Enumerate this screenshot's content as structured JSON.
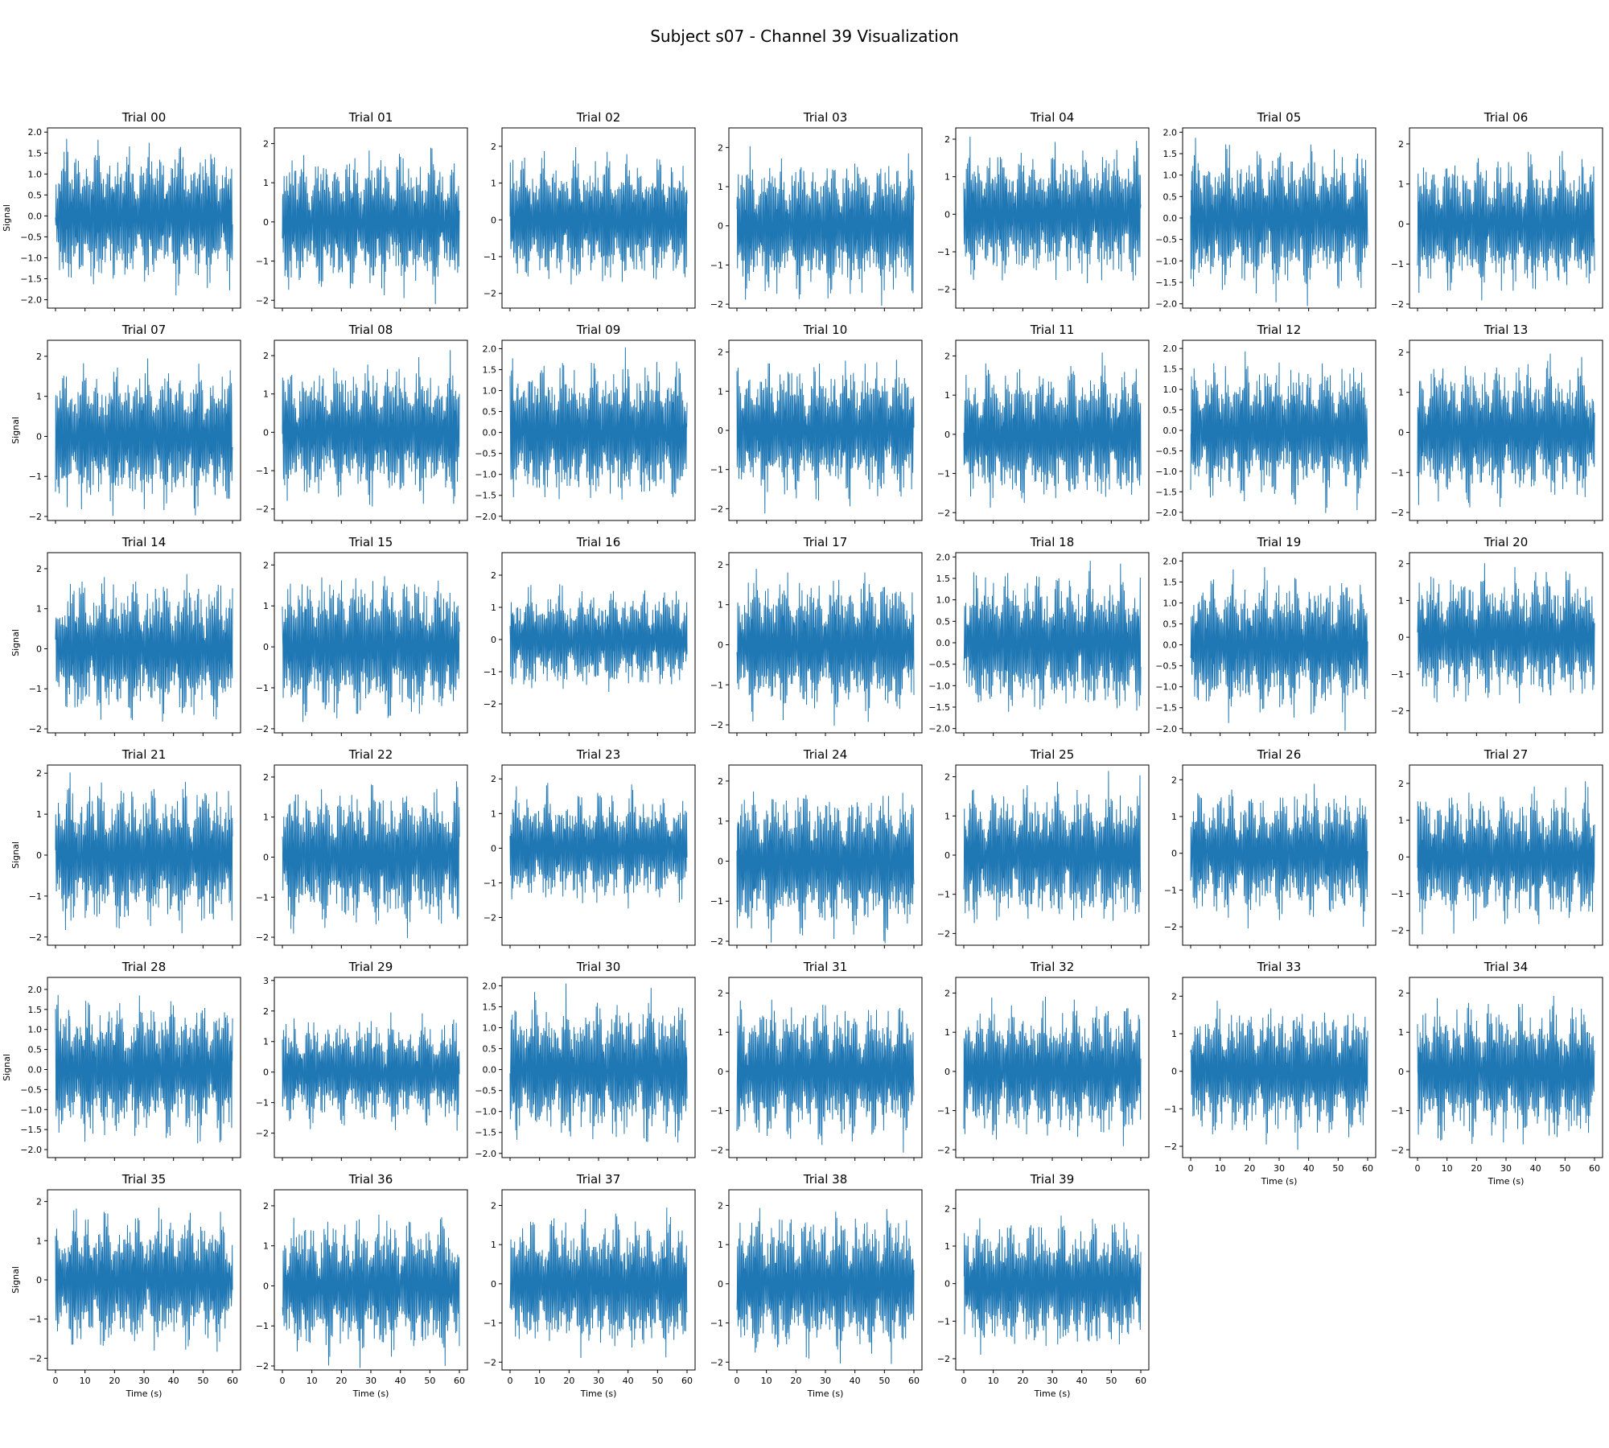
{
  "figure": {
    "title": "Subject s07 - Channel 39 Visualization",
    "line_color": "#1f77b4",
    "xlabel": "Time (s)",
    "ylabel": "Signal",
    "x_ticks": [
      "0",
      "10",
      "20",
      "30",
      "40",
      "50",
      "60"
    ]
  },
  "chart_data": {
    "type": "line",
    "xlim": [
      0,
      60
    ],
    "grid": false,
    "legend": "none",
    "grid_layout": {
      "rows": 6,
      "cols": 7
    },
    "panels": [
      {
        "title": "Trial 00",
        "ylim": [
          -2.2,
          2.1
        ],
        "yticks": [
          "2.0",
          "1.5",
          "1.0",
          "0.5",
          "0.0",
          "−0.5",
          "−1.0",
          "−1.5",
          "−2.0"
        ],
        "show_ylabel": true,
        "show_xlabels": false,
        "amp": 1.9,
        "seed": 11
      },
      {
        "title": "Trial 01",
        "ylim": [
          -2.2,
          2.4
        ],
        "yticks": [
          "2",
          "1",
          "0",
          "−1",
          "−2"
        ],
        "show_ylabel": false,
        "show_xlabels": false,
        "amp": 2.0,
        "seed": 12
      },
      {
        "title": "Trial 02",
        "ylim": [
          -2.4,
          2.5
        ],
        "yticks": [
          "2",
          "1",
          "0",
          "−1",
          "−2"
        ],
        "show_ylabel": false,
        "show_xlabels": false,
        "amp": 2.0,
        "seed": 13
      },
      {
        "title": "Trial 03",
        "ylim": [
          -2.1,
          2.5
        ],
        "yticks": [
          "2",
          "1",
          "0",
          "−1",
          "−2"
        ],
        "show_ylabel": false,
        "show_xlabels": false,
        "amp": 2.0,
        "seed": 14
      },
      {
        "title": "Trial 04",
        "ylim": [
          -2.5,
          2.3
        ],
        "yticks": [
          "2",
          "1",
          "0",
          "−1",
          "−2"
        ],
        "show_ylabel": false,
        "show_xlabels": false,
        "amp": 2.0,
        "seed": 15
      },
      {
        "title": "Trial 05",
        "ylim": [
          -2.1,
          2.1
        ],
        "yticks": [
          "2.0",
          "1.5",
          "1.0",
          "0.5",
          "0.0",
          "−0.5",
          "−1.0",
          "−1.5",
          "−2.0"
        ],
        "show_ylabel": false,
        "show_xlabels": false,
        "amp": 1.9,
        "seed": 16
      },
      {
        "title": "Trial 06",
        "ylim": [
          -2.1,
          2.4
        ],
        "yticks": [
          "2",
          "1",
          "0",
          "−1",
          "−2"
        ],
        "show_ylabel": false,
        "show_xlabels": false,
        "amp": 1.9,
        "seed": 17
      },
      {
        "title": "Trial 07",
        "ylim": [
          -2.1,
          2.4
        ],
        "yticks": [
          "2",
          "1",
          "0",
          "−1",
          "−2"
        ],
        "show_ylabel": true,
        "show_xlabels": false,
        "amp": 2.0,
        "seed": 18
      },
      {
        "title": "Trial 08",
        "ylim": [
          -2.3,
          2.4
        ],
        "yticks": [
          "2",
          "1",
          "0",
          "−1",
          "−2"
        ],
        "show_ylabel": false,
        "show_xlabels": false,
        "amp": 2.0,
        "seed": 19
      },
      {
        "title": "Trial 09",
        "ylim": [
          -2.1,
          2.2
        ],
        "yticks": [
          "2.0",
          "1.5",
          "1.0",
          "0.5",
          "0.0",
          "−0.5",
          "−1.0",
          "−1.5",
          "−2.0"
        ],
        "show_ylabel": false,
        "show_xlabels": false,
        "amp": 1.9,
        "seed": 20
      },
      {
        "title": "Trial 10",
        "ylim": [
          -2.3,
          2.3
        ],
        "yticks": [
          "2",
          "1",
          "0",
          "−1",
          "−2"
        ],
        "show_ylabel": false,
        "show_xlabels": false,
        "amp": 2.0,
        "seed": 21
      },
      {
        "title": "Trial 11",
        "ylim": [
          -2.2,
          2.4
        ],
        "yticks": [
          "2",
          "1",
          "0",
          "−1",
          "−2"
        ],
        "show_ylabel": false,
        "show_xlabels": false,
        "amp": 2.0,
        "seed": 22
      },
      {
        "title": "Trial 12",
        "ylim": [
          -2.2,
          2.2
        ],
        "yticks": [
          "2.0",
          "1.5",
          "1.0",
          "0.5",
          "0.0",
          "−0.5",
          "−1.0",
          "−1.5",
          "−2.0"
        ],
        "show_ylabel": false,
        "show_xlabels": false,
        "amp": 1.9,
        "seed": 23
      },
      {
        "title": "Trial 13",
        "ylim": [
          -2.2,
          2.3
        ],
        "yticks": [
          "2",
          "1",
          "0",
          "−1",
          "−2"
        ],
        "show_ylabel": false,
        "show_xlabels": false,
        "amp": 2.0,
        "seed": 24
      },
      {
        "title": "Trial 14",
        "ylim": [
          -2.1,
          2.4
        ],
        "yticks": [
          "2",
          "1",
          "0",
          "−1",
          "−2"
        ],
        "show_ylabel": true,
        "show_xlabels": false,
        "amp": 2.0,
        "seed": 25
      },
      {
        "title": "Trial 15",
        "ylim": [
          -2.1,
          2.3
        ],
        "yticks": [
          "2",
          "1",
          "0",
          "−1",
          "−2"
        ],
        "show_ylabel": false,
        "show_xlabels": false,
        "amp": 2.0,
        "seed": 26
      },
      {
        "title": "Trial 16",
        "ylim": [
          -2.9,
          2.7
        ],
        "yticks": [
          "2",
          "1",
          "0",
          "−1",
          "−2"
        ],
        "show_ylabel": false,
        "show_xlabels": false,
        "amp": 1.8,
        "seed": 27
      },
      {
        "title": "Trial 17",
        "ylim": [
          -2.2,
          2.3
        ],
        "yticks": [
          "2",
          "1",
          "0",
          "−1",
          "−2"
        ],
        "show_ylabel": false,
        "show_xlabels": false,
        "amp": 2.0,
        "seed": 28
      },
      {
        "title": "Trial 18",
        "ylim": [
          -2.1,
          2.1
        ],
        "yticks": [
          "2.0",
          "1.5",
          "1.0",
          "0.5",
          "0.0",
          "−0.5",
          "−1.0",
          "−1.5",
          "−2.0"
        ],
        "show_ylabel": false,
        "show_xlabels": false,
        "amp": 1.9,
        "seed": 29
      },
      {
        "title": "Trial 19",
        "ylim": [
          -2.1,
          2.2
        ],
        "yticks": [
          "2.0",
          "1.5",
          "1.0",
          "0.5",
          "0.0",
          "−0.5",
          "−1.0",
          "−1.5",
          "−2.0"
        ],
        "show_ylabel": false,
        "show_xlabels": false,
        "amp": 1.9,
        "seed": 30
      },
      {
        "title": "Trial 20",
        "ylim": [
          -2.6,
          2.3
        ],
        "yticks": [
          "2",
          "1",
          "0",
          "−1",
          "−2"
        ],
        "show_ylabel": false,
        "show_xlabels": false,
        "amp": 2.0,
        "seed": 31
      },
      {
        "title": "Trial 21",
        "ylim": [
          -2.2,
          2.2
        ],
        "yticks": [
          "2",
          "1",
          "0",
          "−1",
          "−2"
        ],
        "show_ylabel": true,
        "show_xlabels": false,
        "amp": 2.0,
        "seed": 32
      },
      {
        "title": "Trial 22",
        "ylim": [
          -2.2,
          2.3
        ],
        "yticks": [
          "2",
          "1",
          "0",
          "−1",
          "−2"
        ],
        "show_ylabel": false,
        "show_xlabels": false,
        "amp": 2.0,
        "seed": 33
      },
      {
        "title": "Trial 23",
        "ylim": [
          -2.8,
          2.4
        ],
        "yticks": [
          "2",
          "1",
          "0",
          "−1",
          "−2"
        ],
        "show_ylabel": false,
        "show_xlabels": false,
        "amp": 1.8,
        "seed": 34
      },
      {
        "title": "Trial 24",
        "ylim": [
          -2.1,
          2.4
        ],
        "yticks": [
          "2",
          "1",
          "0",
          "−1",
          "−2"
        ],
        "show_ylabel": false,
        "show_xlabels": false,
        "amp": 2.1,
        "seed": 35
      },
      {
        "title": "Trial 25",
        "ylim": [
          -2.3,
          2.3
        ],
        "yticks": [
          "2",
          "1",
          "0",
          "−1",
          "−2"
        ],
        "show_ylabel": false,
        "show_xlabels": false,
        "amp": 2.0,
        "seed": 36
      },
      {
        "title": "Trial 26",
        "ylim": [
          -2.5,
          2.4
        ],
        "yticks": [
          "2",
          "1",
          "0",
          "−1",
          "−2"
        ],
        "show_ylabel": false,
        "show_xlabels": false,
        "amp": 2.0,
        "seed": 37
      },
      {
        "title": "Trial 27",
        "ylim": [
          -2.4,
          2.5
        ],
        "yticks": [
          "2",
          "1",
          "0",
          "−1",
          "−2"
        ],
        "show_ylabel": false,
        "show_xlabels": false,
        "amp": 2.0,
        "seed": 38
      },
      {
        "title": "Trial 28",
        "ylim": [
          -2.2,
          2.3
        ],
        "yticks": [
          "2.0",
          "1.5",
          "1.0",
          "0.5",
          "0.0",
          "−0.5",
          "−1.0",
          "−1.5",
          "−2.0"
        ],
        "show_ylabel": true,
        "show_xlabels": false,
        "amp": 2.0,
        "seed": 39
      },
      {
        "title": "Trial 29",
        "ylim": [
          -2.8,
          3.1
        ],
        "yticks": [
          "3",
          "2",
          "1",
          "0",
          "−1",
          "−2"
        ],
        "show_ylabel": false,
        "show_xlabels": false,
        "amp": 2.0,
        "seed": 40
      },
      {
        "title": "Trial 30",
        "ylim": [
          -2.1,
          2.2
        ],
        "yticks": [
          "2.0",
          "1.5",
          "1.0",
          "0.5",
          "0.0",
          "−0.5",
          "−1.0",
          "−1.5",
          "−2.0"
        ],
        "show_ylabel": false,
        "show_xlabels": false,
        "amp": 1.9,
        "seed": 41
      },
      {
        "title": "Trial 31",
        "ylim": [
          -2.2,
          2.4
        ],
        "yticks": [
          "2",
          "1",
          "0",
          "−1",
          "−2"
        ],
        "show_ylabel": false,
        "show_xlabels": false,
        "amp": 2.0,
        "seed": 42
      },
      {
        "title": "Trial 32",
        "ylim": [
          -2.2,
          2.4
        ],
        "yticks": [
          "2",
          "1",
          "0",
          "−1",
          "−2"
        ],
        "show_ylabel": false,
        "show_xlabels": false,
        "amp": 2.0,
        "seed": 43
      },
      {
        "title": "Trial 33",
        "ylim": [
          -2.3,
          2.5
        ],
        "yticks": [
          "2",
          "1",
          "0",
          "−1",
          "−2"
        ],
        "show_ylabel": false,
        "show_xlabels": true,
        "amp": 2.0,
        "seed": 44
      },
      {
        "title": "Trial 34",
        "ylim": [
          -2.2,
          2.4
        ],
        "yticks": [
          "2",
          "1",
          "0",
          "−1",
          "−2"
        ],
        "show_ylabel": false,
        "show_xlabels": true,
        "amp": 2.0,
        "seed": 45
      },
      {
        "title": "Trial 35",
        "ylim": [
          -2.3,
          2.3
        ],
        "yticks": [
          "2",
          "1",
          "0",
          "−1",
          "−2"
        ],
        "show_ylabel": true,
        "show_xlabels": true,
        "amp": 2.0,
        "seed": 46
      },
      {
        "title": "Trial 36",
        "ylim": [
          -2.1,
          2.4
        ],
        "yticks": [
          "2",
          "1",
          "0",
          "−1",
          "−2"
        ],
        "show_ylabel": false,
        "show_xlabels": true,
        "amp": 2.0,
        "seed": 47
      },
      {
        "title": "Trial 37",
        "ylim": [
          -2.2,
          2.4
        ],
        "yticks": [
          "2",
          "1",
          "0",
          "−1",
          "−2"
        ],
        "show_ylabel": false,
        "show_xlabels": true,
        "amp": 2.0,
        "seed": 48
      },
      {
        "title": "Trial 38",
        "ylim": [
          -2.2,
          2.4
        ],
        "yticks": [
          "2",
          "1",
          "0",
          "−1",
          "−2"
        ],
        "show_ylabel": false,
        "show_xlabels": true,
        "amp": 2.1,
        "seed": 49
      },
      {
        "title": "Trial 39",
        "ylim": [
          -2.3,
          2.5
        ],
        "yticks": [
          "2",
          "1",
          "0",
          "−1",
          "−2"
        ],
        "show_ylabel": false,
        "show_xlabels": true,
        "amp": 2.0,
        "seed": 50
      }
    ]
  }
}
